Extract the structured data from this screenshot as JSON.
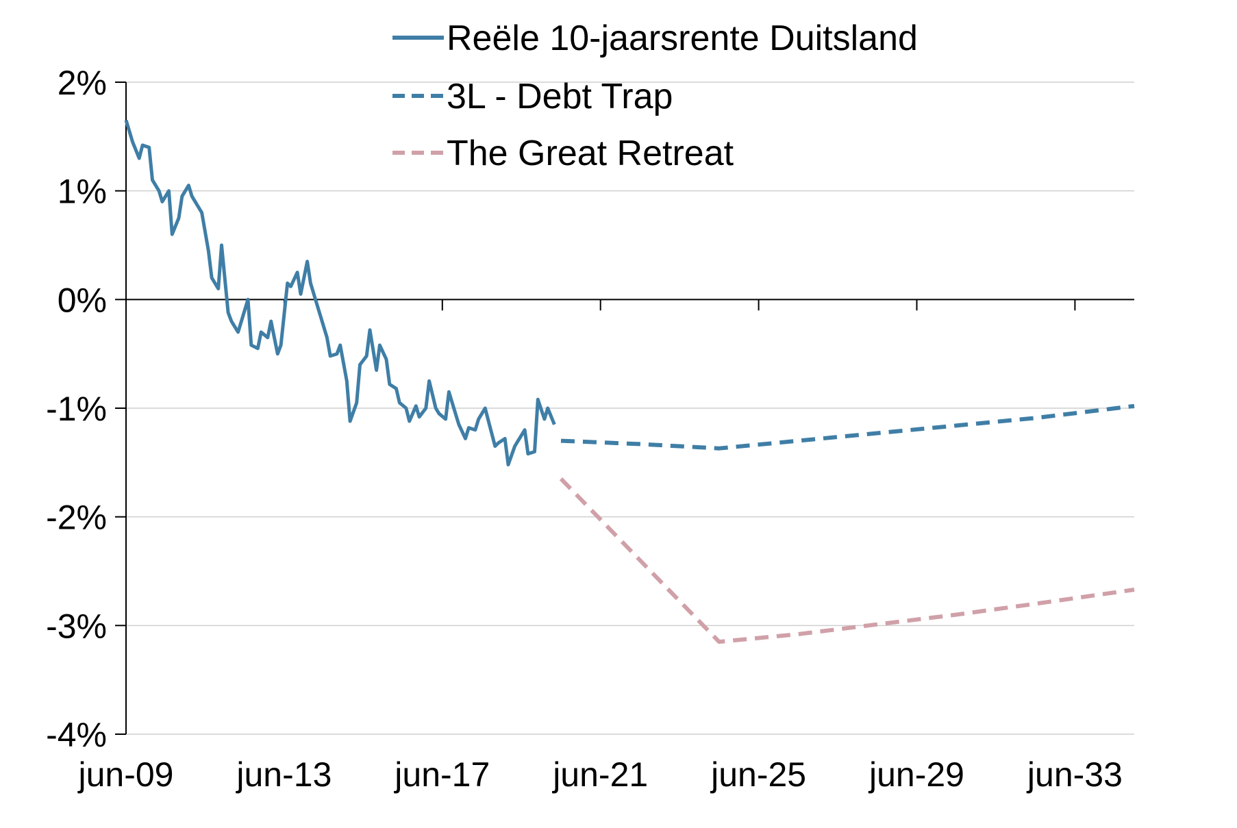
{
  "chart_data": {
    "type": "line",
    "title": "",
    "xlabel": "",
    "ylabel": "",
    "ylim": [
      -4,
      2
    ],
    "y_ticks": [
      2,
      1,
      0,
      -1,
      -2,
      -3,
      -4
    ],
    "y_tick_labels": [
      "2%",
      "1%",
      "0%",
      "-1%",
      "-2%",
      "-3%",
      "-4%"
    ],
    "x_axis": {
      "type": "date",
      "range": [
        "2009-06",
        "2034-12"
      ]
    },
    "x_ticks": [
      "2009-06",
      "2013-06",
      "2017-06",
      "2021-06",
      "2025-06",
      "2029-06",
      "2033-06"
    ],
    "x_tick_labels": [
      "jun-09",
      "jun-13",
      "jun-17",
      "jun-21",
      "jun-25",
      "jun-29",
      "jun-33"
    ],
    "grid": {
      "horizontal": true,
      "vertical": false
    },
    "legend_position": "top",
    "series": [
      {
        "name": "Reële 10-jaarsrente Duitsland",
        "style": "solid",
        "color": "#3f7ea6",
        "x": [
          "2009-06",
          "2009-08",
          "2009-10",
          "2009-11",
          "2010-01",
          "2010-02",
          "2010-04",
          "2010-05",
          "2010-07",
          "2010-08",
          "2010-10",
          "2010-11",
          "2011-01",
          "2011-02",
          "2011-04",
          "2011-05",
          "2011-07",
          "2011-08",
          "2011-10",
          "2011-11",
          "2012-01",
          "2012-02",
          "2012-04",
          "2012-05",
          "2012-07",
          "2012-08",
          "2012-10",
          "2012-11",
          "2013-01",
          "2013-02",
          "2013-04",
          "2013-05",
          "2013-07",
          "2013-08",
          "2013-10",
          "2013-11",
          "2014-01",
          "2014-02",
          "2014-04",
          "2014-05",
          "2014-07",
          "2014-08",
          "2014-10",
          "2014-11",
          "2015-01",
          "2015-02",
          "2015-04",
          "2015-05",
          "2015-07",
          "2015-08",
          "2015-10",
          "2015-11",
          "2016-01",
          "2016-02",
          "2016-04",
          "2016-05",
          "2016-07",
          "2016-08",
          "2016-10",
          "2016-11",
          "2017-01",
          "2017-02",
          "2017-04",
          "2017-05",
          "2017-07",
          "2017-08",
          "2017-10",
          "2017-11",
          "2018-01",
          "2018-02",
          "2018-04",
          "2018-05",
          "2018-07",
          "2018-08",
          "2018-10",
          "2018-11",
          "2019-01",
          "2019-02",
          "2019-04",
          "2019-05",
          "2019-07",
          "2019-08",
          "2019-10",
          "2019-11",
          "2020-01",
          "2020-02",
          "2020-04"
        ],
        "values": [
          1.65,
          1.45,
          1.3,
          1.42,
          1.4,
          1.1,
          1.0,
          0.9,
          1.0,
          0.6,
          0.75,
          0.95,
          1.05,
          0.95,
          0.85,
          0.8,
          0.45,
          0.2,
          0.1,
          0.5,
          -0.12,
          -0.2,
          -0.3,
          -0.2,
          0.0,
          -0.42,
          -0.45,
          -0.3,
          -0.35,
          -0.2,
          -0.5,
          -0.42,
          0.15,
          0.12,
          0.25,
          0.05,
          0.35,
          0.15,
          -0.05,
          -0.15,
          -0.35,
          -0.52,
          -0.5,
          -0.42,
          -0.75,
          -1.12,
          -0.95,
          -0.6,
          -0.52,
          -0.28,
          -0.65,
          -0.42,
          -0.55,
          -0.78,
          -0.82,
          -0.95,
          -1.0,
          -1.12,
          -0.98,
          -1.08,
          -1.0,
          -0.75,
          -1.0,
          -1.05,
          -1.1,
          -0.85,
          -1.05,
          -1.15,
          -1.28,
          -1.18,
          -1.2,
          -1.1,
          -1.0,
          -1.12,
          -1.35,
          -1.32,
          -1.28,
          -1.52,
          -1.35,
          -1.3,
          -1.2,
          -1.42,
          -1.4,
          -0.92,
          -1.1,
          -1.0,
          -1.15
        ]
      },
      {
        "name": "3L - Debt Trap",
        "style": "dashed",
        "color": "#3f7ea6",
        "x": [
          "2020-06",
          "2022-06",
          "2024-06",
          "2026-06",
          "2028-06",
          "2030-06",
          "2032-06",
          "2034-12"
        ],
        "values": [
          -1.3,
          -1.33,
          -1.37,
          -1.3,
          -1.23,
          -1.16,
          -1.09,
          -0.98
        ]
      },
      {
        "name": "The Great Retreat",
        "style": "dashed",
        "color": "#d0a0a8",
        "x": [
          "2020-06",
          "2024-06",
          "2026-06",
          "2028-06",
          "2030-06",
          "2032-06",
          "2034-12"
        ],
        "values": [
          -1.65,
          -3.15,
          -3.08,
          -2.99,
          -2.9,
          -2.8,
          -2.67
        ]
      }
    ]
  }
}
